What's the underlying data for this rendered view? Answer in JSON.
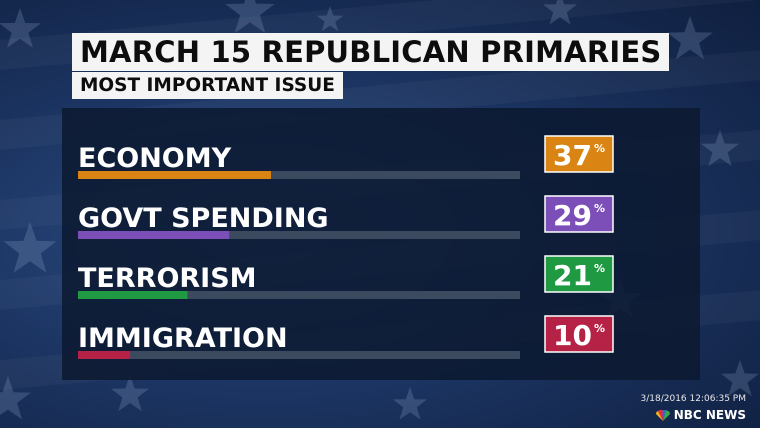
{
  "colors": {
    "track": "#3c4a60",
    "label_text": "#ffffff",
    "value_text": "#ffffff"
  },
  "chart_data": {
    "type": "bar",
    "orientation": "horizontal",
    "title": "MARCH 15 REPUBLICAN PRIMARIES",
    "subtitle": "MOST IMPORTANT ISSUE",
    "categories": [
      "ECONOMY",
      "GOVT SPENDING",
      "TERRORISM",
      "IMMIGRATION"
    ],
    "values": [
      37,
      29,
      21,
      10
    ],
    "value_labels": [
      "37",
      "29",
      "21",
      "10"
    ],
    "unit": "%",
    "colors": [
      "#d98413",
      "#7b4eb8",
      "#1f9a43",
      "#b52245"
    ],
    "xlim": [
      0,
      100
    ],
    "grid": false,
    "legend": "none"
  },
  "footer": {
    "timestamp": "3/18/2016 12:06:35 PM",
    "network": "NBC NEWS",
    "logo_icon": "peacock-icon"
  }
}
